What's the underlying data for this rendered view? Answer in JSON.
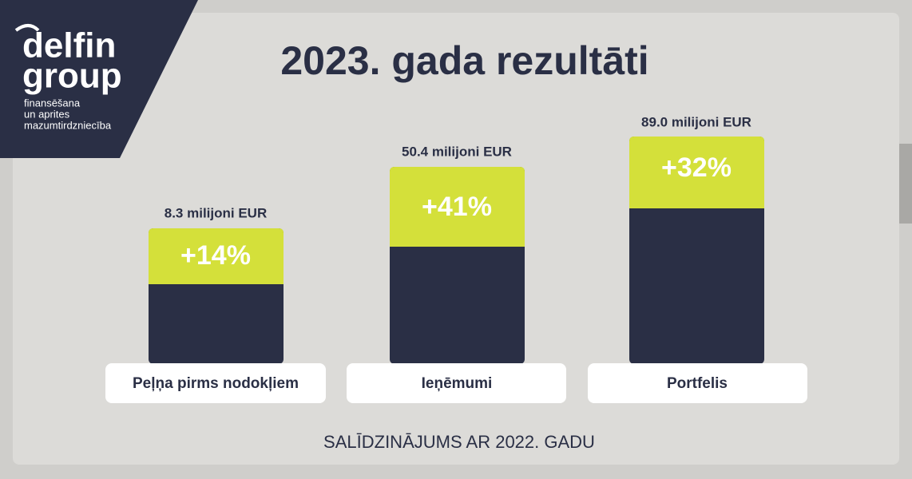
{
  "logo": {
    "name_line1": "delfin",
    "name_line2": "group",
    "tagline": [
      "finansēšana",
      "un aprites",
      "mazumtirdzniecība"
    ]
  },
  "title": "2023. gada rezultāti",
  "cards": [
    {
      "amount": "8.3 milijoni EUR",
      "growth": "+14%",
      "label": "Peļņa pirms nodokļiem"
    },
    {
      "amount": "50.4 milijoni EUR",
      "growth": "+41%",
      "label": "Ieņēmumi"
    },
    {
      "amount": "89.0 milijoni EUR",
      "growth": "+32%",
      "label": "Portfelis"
    }
  ],
  "footer": "SALĪDZINĀJUMS AR 2022. GADU"
}
